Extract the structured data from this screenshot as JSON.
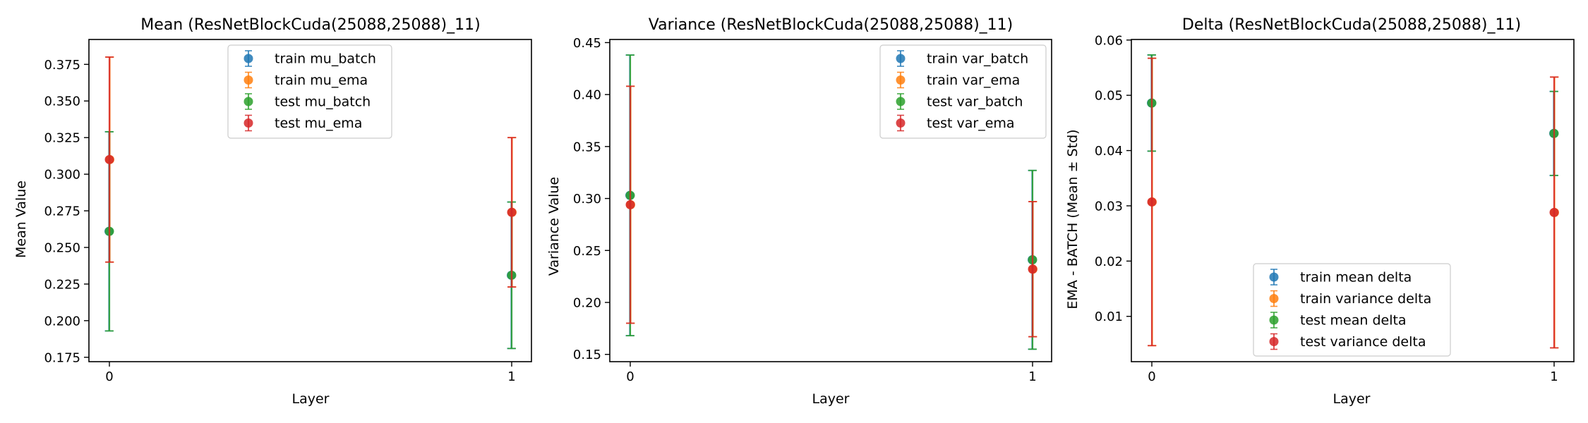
{
  "colors": {
    "train_batch": "#1f77b4",
    "train_ema": "#ff7f0e",
    "test_batch": "#2ca02c",
    "test_ema": "#d62728"
  },
  "chart_data": [
    {
      "type": "scatter",
      "title": "Mean (ResNetBlockCuda(25088,25088)_11)",
      "xlabel": "Layer",
      "ylabel": "Mean Value",
      "x": [
        0,
        1
      ],
      "xticks": [
        "0",
        "1"
      ],
      "ylim": [
        0.172,
        0.392
      ],
      "yticks": [
        "0.175",
        "0.200",
        "0.225",
        "0.250",
        "0.275",
        "0.300",
        "0.325",
        "0.350",
        "0.375"
      ],
      "grid": false,
      "legend_position": "top-center",
      "series": [
        {
          "name": "train mu_batch",
          "color": "#1f77b4",
          "values": [
            0.261,
            0.231
          ],
          "errors": [
            0.068,
            0.05
          ]
        },
        {
          "name": "train mu_ema",
          "color": "#ff7f0e",
          "values": [
            0.31,
            0.274
          ],
          "errors": [
            0.07,
            0.051
          ]
        },
        {
          "name": "test mu_batch",
          "color": "#2ca02c",
          "values": [
            0.261,
            0.231
          ],
          "errors": [
            0.068,
            0.05
          ]
        },
        {
          "name": "test mu_ema",
          "color": "#d62728",
          "values": [
            0.31,
            0.274
          ],
          "errors": [
            0.07,
            0.051
          ]
        }
      ]
    },
    {
      "type": "scatter",
      "title": "Variance (ResNetBlockCuda(25088,25088)_11)",
      "xlabel": "Layer",
      "ylabel": "Variance Value",
      "x": [
        0,
        1
      ],
      "xticks": [
        "0",
        "1"
      ],
      "ylim": [
        0.143,
        0.453
      ],
      "yticks": [
        "0.15",
        "0.20",
        "0.25",
        "0.30",
        "0.35",
        "0.40",
        "0.45"
      ],
      "grid": false,
      "legend_position": "top-right",
      "series": [
        {
          "name": "train var_batch",
          "color": "#1f77b4",
          "values": [
            0.303,
            0.241
          ],
          "errors": [
            0.135,
            0.086
          ]
        },
        {
          "name": "train var_ema",
          "color": "#ff7f0e",
          "values": [
            0.294,
            0.232
          ],
          "errors": [
            0.114,
            0.065
          ]
        },
        {
          "name": "test var_batch",
          "color": "#2ca02c",
          "values": [
            0.303,
            0.241
          ],
          "errors": [
            0.135,
            0.086
          ]
        },
        {
          "name": "test var_ema",
          "color": "#d62728",
          "values": [
            0.294,
            0.232
          ],
          "errors": [
            0.114,
            0.065
          ]
        }
      ]
    },
    {
      "type": "scatter",
      "title": "Delta (ResNetBlockCuda(25088,25088)_11)",
      "xlabel": "Layer",
      "ylabel": "EMA - BATCH (Mean ± Std)",
      "x": [
        0,
        1
      ],
      "xticks": [
        "0",
        "1"
      ],
      "ylim": [
        0.0018,
        0.0601
      ],
      "yticks": [
        "0.01",
        "0.02",
        "0.03",
        "0.04",
        "0.05",
        "0.06"
      ],
      "grid": false,
      "legend_position": "lower-center",
      "series": [
        {
          "name": "train mean delta",
          "color": "#1f77b4",
          "values": [
            0.0486,
            0.0431
          ],
          "errors": [
            0.0087,
            0.0076
          ]
        },
        {
          "name": "train variance delta",
          "color": "#ff7f0e",
          "values": [
            0.0307,
            0.0288
          ],
          "errors": [
            0.026,
            0.0245
          ]
        },
        {
          "name": "test mean delta",
          "color": "#2ca02c",
          "values": [
            0.0486,
            0.0431
          ],
          "errors": [
            0.0087,
            0.0076
          ]
        },
        {
          "name": "test variance delta",
          "color": "#d62728",
          "values": [
            0.0307,
            0.0288
          ],
          "errors": [
            0.026,
            0.0245
          ]
        }
      ]
    }
  ]
}
